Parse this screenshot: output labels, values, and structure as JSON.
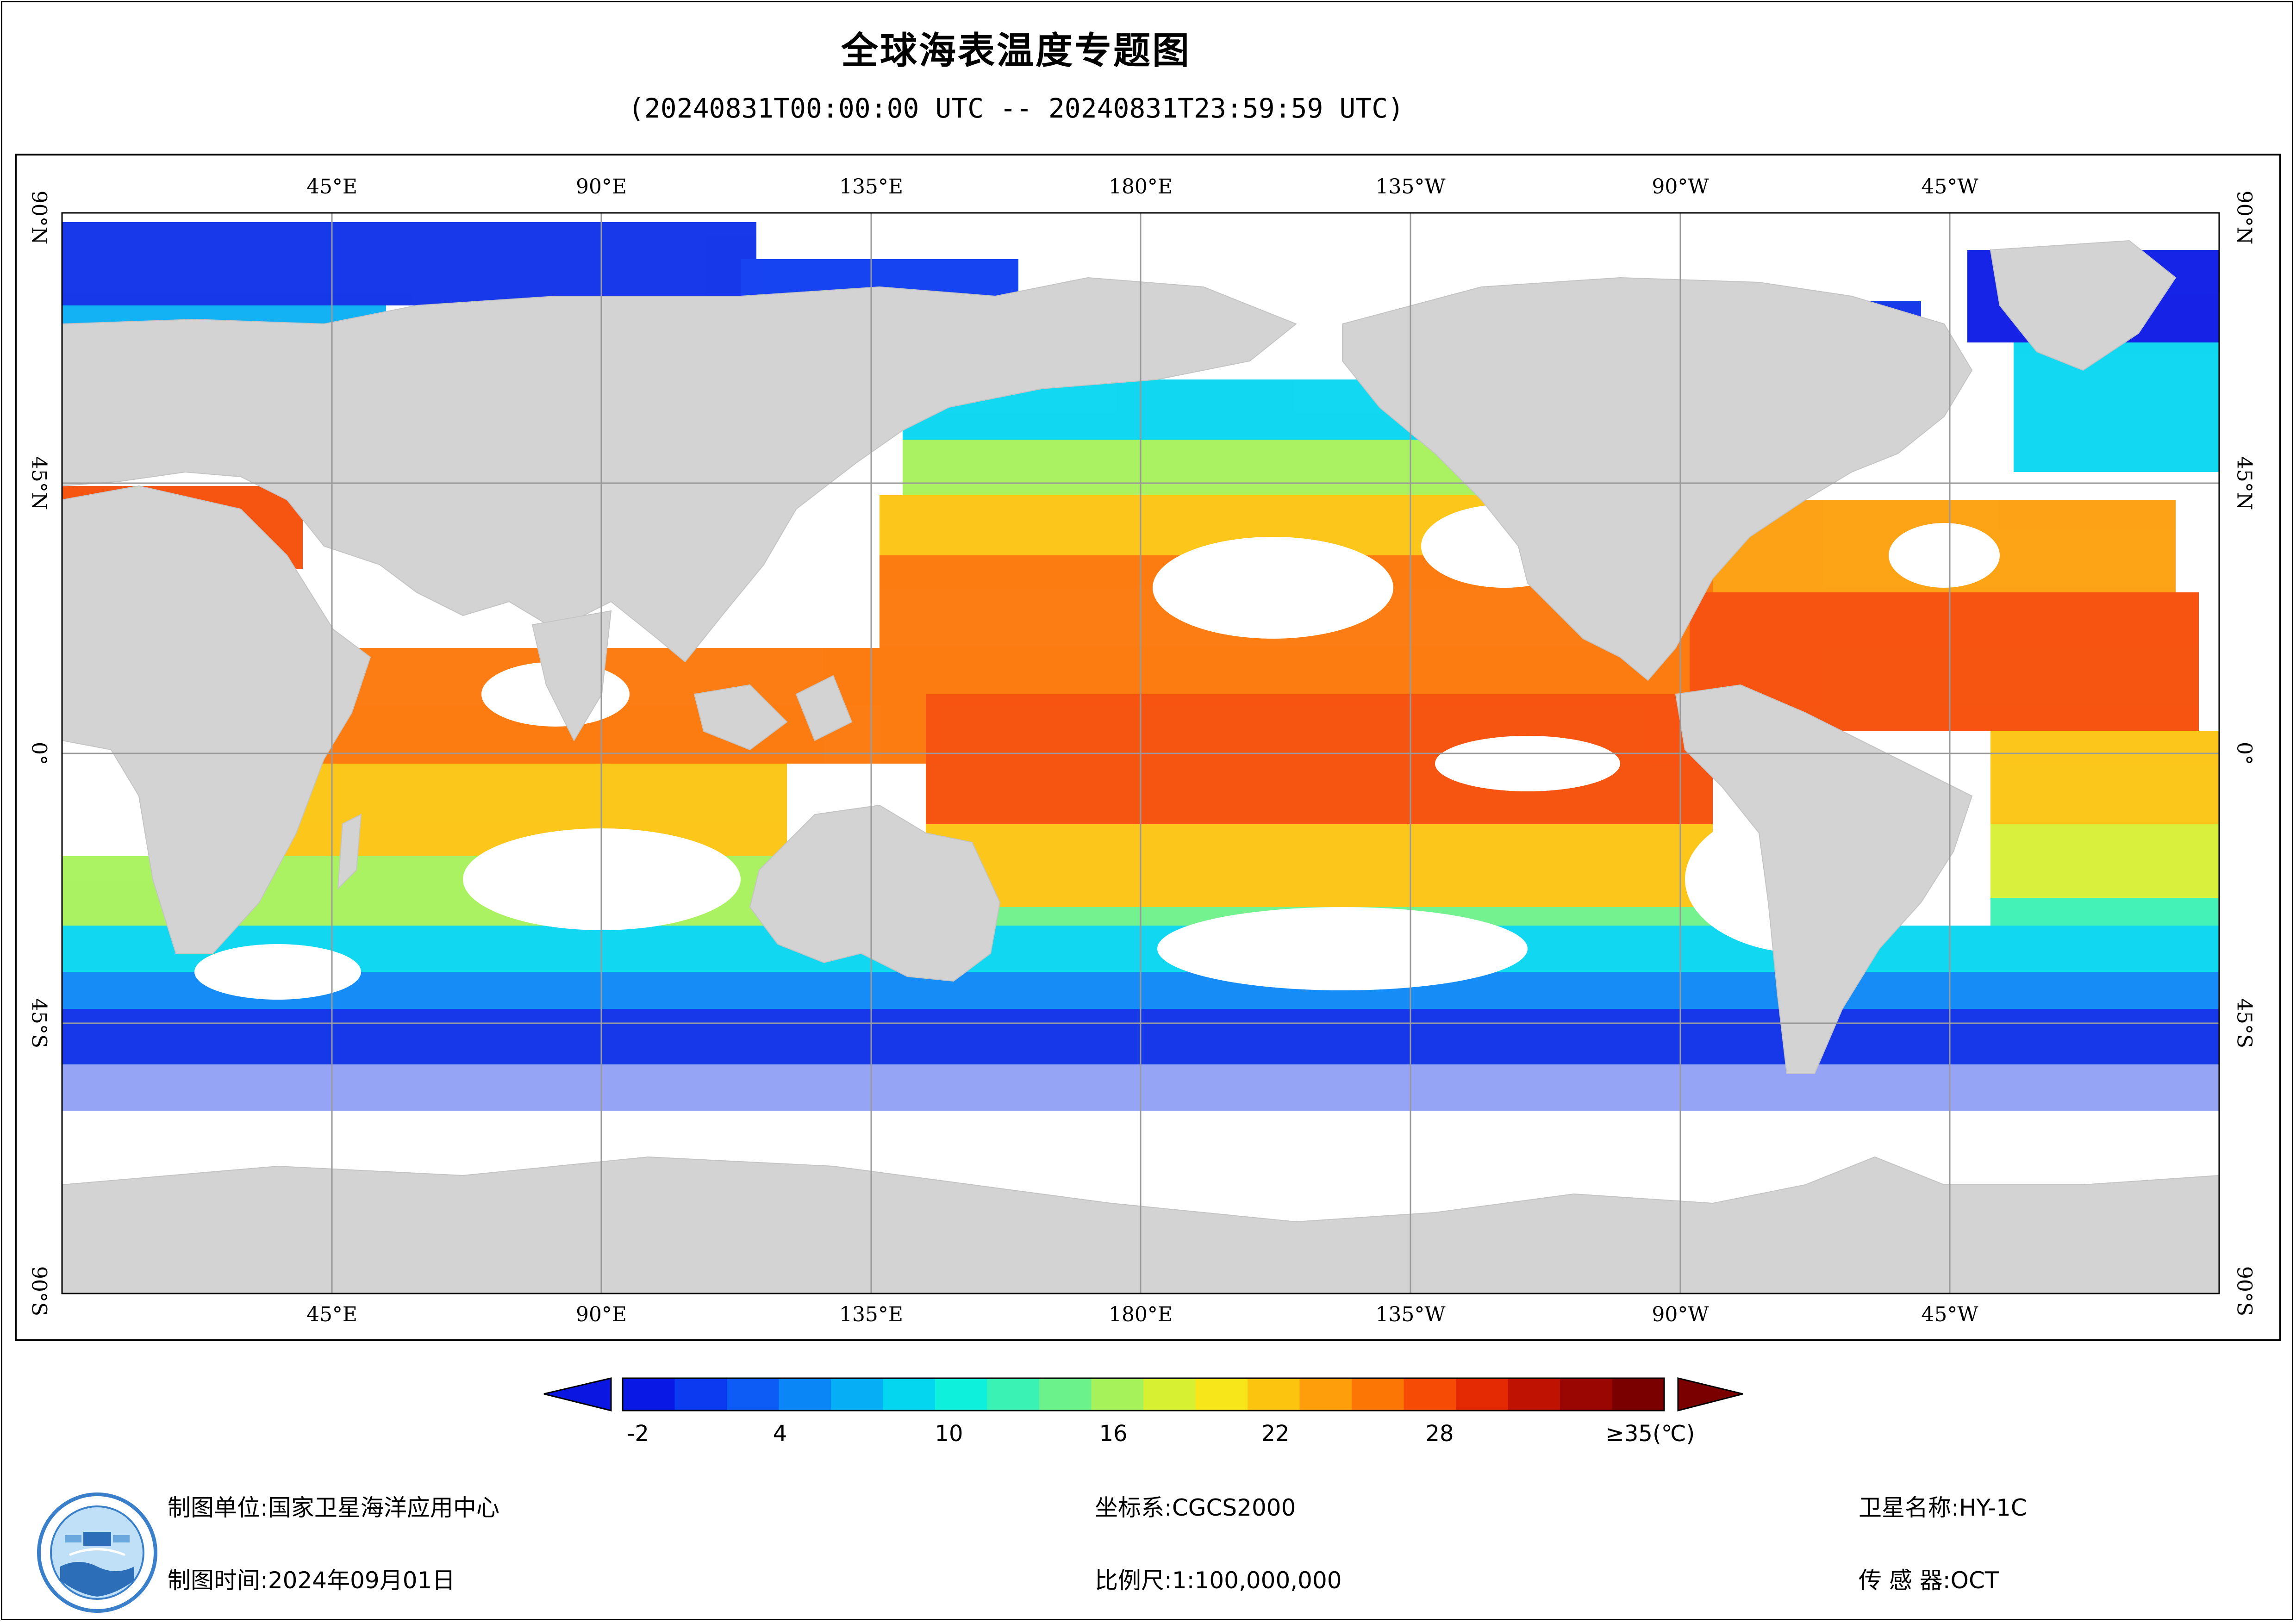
{
  "title": "全球海表温度专题图",
  "subtitle": "(20240831T00:00:00 UTC -- 20240831T23:59:59 UTC)",
  "map": {
    "lon_ticks": [
      "45°E",
      "90°E",
      "135°E",
      "180°E",
      "135°W",
      "90°W",
      "45°W"
    ],
    "lat_ticks_left": [
      "90°N",
      "45°N",
      "0°",
      "45°S",
      "90°S"
    ],
    "lat_ticks_right": [
      "90°N",
      "45°N",
      "0°",
      "45°S",
      "90°S"
    ],
    "colors": {
      "land": "#d3d3d3",
      "ocean_nodata": "#ffffff",
      "grid": "#9a9a9a"
    }
  },
  "colorbar": {
    "labels": [
      "-2",
      "4",
      "10",
      "16",
      "22",
      "28",
      "≥35(℃)"
    ],
    "min_arrow_color": "#0b16e0",
    "max_arrow_color": "#7a0000",
    "palette": [
      "#0a18e6",
      "#0b3af0",
      "#0c5cf5",
      "#0a86f7",
      "#06aef5",
      "#05d6f0",
      "#0ef0dc",
      "#3af2b4",
      "#6cf28a",
      "#a6f25a",
      "#d8f032",
      "#f6e61a",
      "#fcc40f",
      "#fd9e0a",
      "#fc7606",
      "#f64b04",
      "#e42a02",
      "#c01202",
      "#9a0602",
      "#7a0000"
    ]
  },
  "footer": {
    "org_label": "制图单位:",
    "org_value": "国家卫星海洋应用中心",
    "time_label": "制图时间:",
    "time_value": "2024年09月01日",
    "crs_label": "坐标系:",
    "crs_value": "CGCS2000",
    "scale_label": "比例尺:",
    "scale_value": "1:100,000,000",
    "sat_label": "卫星名称:",
    "sat_value": "HY-1C",
    "sensor_label": "传 感 器:",
    "sensor_value": "OCT"
  }
}
